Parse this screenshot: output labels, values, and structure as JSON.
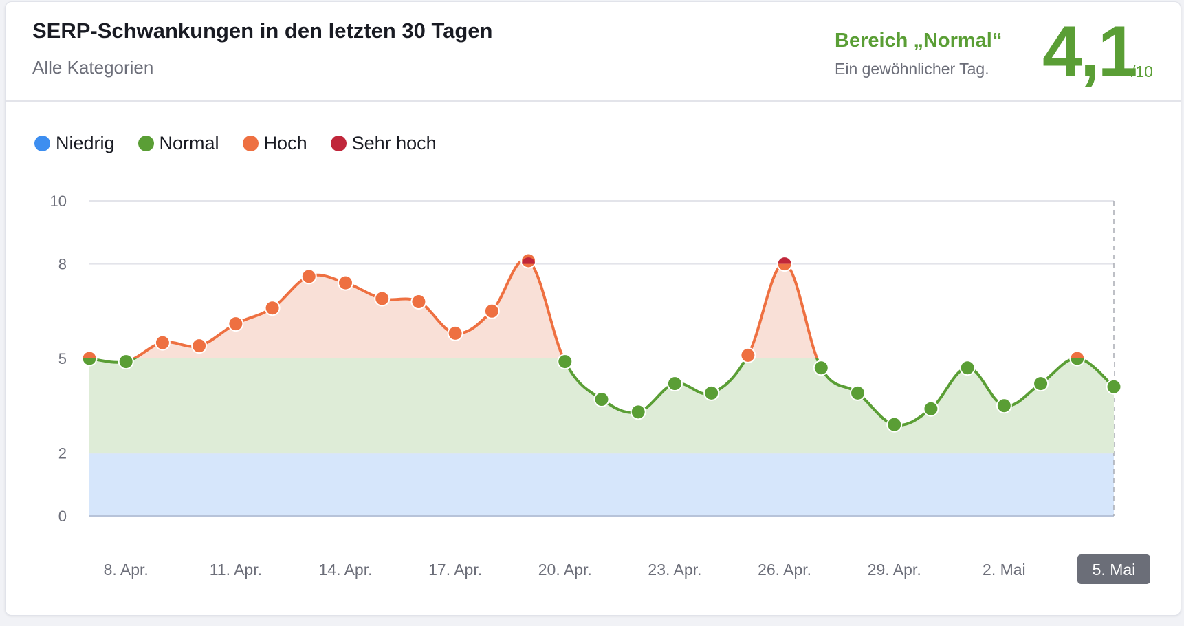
{
  "header": {
    "title": "SERP-Schwankungen in den letzten 30 Tagen",
    "subtitle": "Alle Kategorien",
    "range_label": "Bereich „Normal“",
    "range_description": "Ein gewöhnlicher Tag.",
    "score": "4,1",
    "score_max": "/10"
  },
  "legend": [
    {
      "label": "Niedrig",
      "color": "#3d8ef0"
    },
    {
      "label": "Normal",
      "color": "#5a9e35"
    },
    {
      "label": "Hoch",
      "color": "#ee7041"
    },
    {
      "label": "Sehr hoch",
      "color": "#c0263a"
    }
  ],
  "chart_data": {
    "type": "line",
    "title": "SERP-Schwankungen in den letzten 30 Tagen",
    "xlabel": "",
    "ylabel": "",
    "ylim": [
      0,
      10
    ],
    "y_ticks": [
      "0",
      "2",
      "5",
      "8",
      "10"
    ],
    "y_tick_values": [
      0,
      2,
      5,
      8,
      10
    ],
    "x": [
      "7. Apr.",
      "8. Apr.",
      "9. Apr.",
      "10. Apr.",
      "11. Apr.",
      "12. Apr.",
      "13. Apr.",
      "14. Apr.",
      "15. Apr.",
      "16. Apr.",
      "17. Apr.",
      "18. Apr.",
      "19. Apr.",
      "20. Apr.",
      "21. Apr.",
      "22. Apr.",
      "23. Apr.",
      "24. Apr.",
      "25. Apr.",
      "26. Apr.",
      "27. Apr.",
      "28. Apr.",
      "29. Apr.",
      "30. Apr.",
      "1. Mai",
      "2. Mai",
      "3. Mai",
      "4. Mai",
      "5. Mai"
    ],
    "values": [
      5.0,
      4.9,
      5.5,
      5.4,
      6.1,
      6.6,
      7.6,
      7.4,
      6.9,
      6.8,
      5.8,
      6.5,
      8.1,
      4.9,
      3.7,
      3.3,
      4.2,
      3.9,
      5.1,
      8.0,
      4.7,
      3.9,
      2.9,
      3.4,
      4.7,
      3.5,
      4.2,
      5.0,
      4.1
    ],
    "x_tick_labels": [
      "8. Apr.",
      "11. Apr.",
      "14. Apr.",
      "17. Apr.",
      "20. Apr.",
      "23. Apr.",
      "26. Apr.",
      "29. Apr.",
      "2. Mai",
      "5. Mai"
    ],
    "x_tick_indices": [
      1,
      4,
      7,
      10,
      13,
      16,
      19,
      22,
      25,
      28
    ],
    "selected_label": "5. Mai",
    "bands": [
      {
        "name": "Niedrig",
        "from": 0,
        "to": 2,
        "fill": "#d6e6fb",
        "color": "#3d8ef0"
      },
      {
        "name": "Normal",
        "from": 2,
        "to": 5,
        "fill": "#deecd7",
        "color": "#5a9e35"
      },
      {
        "name": "Hoch",
        "from": 5,
        "to": 8,
        "fill": "#f9e0d7",
        "color": "#ee7041"
      },
      {
        "name": "Sehr hoch",
        "from": 8,
        "to": 10,
        "fill": "#f9e0d7",
        "color": "#c0263a"
      }
    ],
    "grid": true,
    "legend_position": "top-left"
  }
}
